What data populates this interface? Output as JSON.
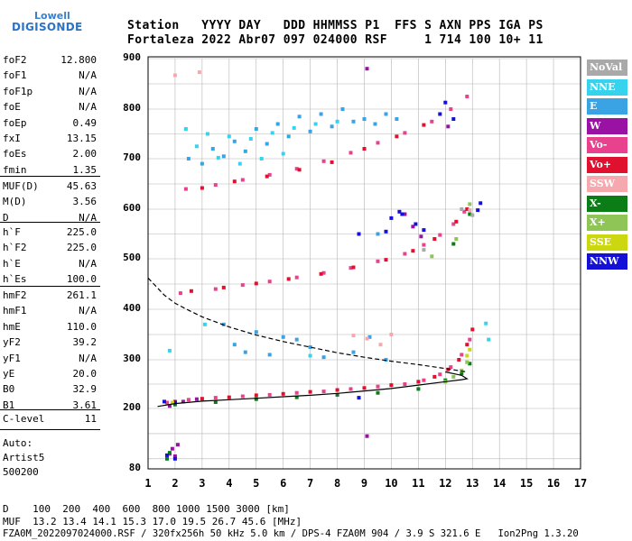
{
  "logo": {
    "line1": "Lowell",
    "line2": "DIGISONDE"
  },
  "header": {
    "row1": "Station   YYYY DAY   DDD HHMMSS P1  FFS S AXN PPS IGA PS",
    "row2": "Fortaleza 2022 Abr07 097 024000 RSF     1 714 100 10+ 11"
  },
  "params": {
    "group1": [
      {
        "label": "foF2",
        "value": "12.800"
      },
      {
        "label": "foF1",
        "value": "N/A"
      },
      {
        "label": "foF1p",
        "value": "N/A"
      },
      {
        "label": "foE",
        "value": "N/A"
      },
      {
        "label": "foEp",
        "value": "0.49"
      },
      {
        "label": "fxI",
        "value": "13.15"
      },
      {
        "label": "foEs",
        "value": "2.00"
      },
      {
        "label": "fmin",
        "value": "1.35"
      }
    ],
    "group2": [
      {
        "label": "MUF(D)",
        "value": "45.63"
      },
      {
        "label": "M(D)",
        "value": "3.56"
      },
      {
        "label": "D",
        "value": "N/A"
      }
    ],
    "group3": [
      {
        "label": "h`F",
        "value": "225.0"
      },
      {
        "label": "h`F2",
        "value": "225.0"
      },
      {
        "label": "h`E",
        "value": "N/A"
      },
      {
        "label": "h`Es",
        "value": "100.0"
      }
    ],
    "group4": [
      {
        "label": "hmF2",
        "value": "261.1"
      },
      {
        "label": "hmF1",
        "value": "N/A"
      },
      {
        "label": "hmE",
        "value": "110.0"
      },
      {
        "label": "yF2",
        "value": "39.2"
      },
      {
        "label": "yF1",
        "value": "N/A"
      },
      {
        "label": "yE",
        "value": "20.0"
      },
      {
        "label": "B0",
        "value": "32.9"
      },
      {
        "label": "B1",
        "value": "3.61"
      }
    ],
    "group5": [
      {
        "label": "C-level",
        "value": "11"
      }
    ]
  },
  "auto": {
    "line1": "Auto:",
    "line2": "Artist5",
    "line3": "500200"
  },
  "legend": [
    {
      "label": "NoVal",
      "color": "#a9a9a9",
      "text_color": "#ffffff"
    },
    {
      "label": "NNE",
      "color": "#35d3ee",
      "text_color": "#ffffff"
    },
    {
      "label": "E",
      "color": "#3aa3e3",
      "text_color": "#ffffff"
    },
    {
      "label": "W",
      "color": "#9a12a3",
      "text_color": "#ffffff"
    },
    {
      "label": "Vo-",
      "color": "#e8418e",
      "text_color": "#ffffff"
    },
    {
      "label": "Vo+",
      "color": "#e0102f",
      "text_color": "#ffffff"
    },
    {
      "label": "SSW",
      "color": "#f5a9ae",
      "text_color": "#ffffff"
    },
    {
      "label": "X-",
      "color": "#0b7d17",
      "text_color": "#ffffff"
    },
    {
      "label": "X+",
      "color": "#8fc456",
      "text_color": "#ffffff"
    },
    {
      "label": "SSE",
      "color": "#cdd70f",
      "text_color": "#ffffff"
    },
    {
      "label": "NNW",
      "color": "#1410d8",
      "text_color": "#ffffff"
    }
  ],
  "footer": {
    "line1": "D    100  200  400  600  800 1000 1500 3000 [km]",
    "line2": "MUF  13.2 13.4 14.1 15.3 17.0 19.5 26.7 45.6 [MHz]",
    "line3": "FZA0M_2022097024000.RSF / 320fx256h 50 kHz 5.0 km / DPS-4 FZA0M 904 / 3.9 S 321.6 E   Ion2Png 1.3.20"
  },
  "chart_data": {
    "type": "scatter",
    "title": "",
    "xlabel": "",
    "ylabel": "",
    "xlim": [
      1,
      17
    ],
    "ylim": [
      80,
      900
    ],
    "x_ticks": [
      "1",
      "2",
      "3",
      "4",
      "5",
      "6",
      "7",
      "8",
      "9",
      "10",
      "11",
      "12",
      "13",
      "14",
      "15",
      "16",
      "17"
    ],
    "y_ticks": [
      "80",
      "200",
      "300",
      "400",
      "500",
      "600",
      "700",
      "800",
      "900"
    ],
    "grid": true,
    "legend_position": "right",
    "series": [
      {
        "name": "Vo-",
        "color": "#e8418e",
        "points": [
          [
            1.7,
            212
          ],
          [
            2.5,
            218
          ],
          [
            3.5,
            222
          ],
          [
            4.5,
            225
          ],
          [
            5.5,
            228
          ],
          [
            6.5,
            232
          ],
          [
            7.5,
            235
          ],
          [
            8.5,
            240
          ],
          [
            9.5,
            245
          ],
          [
            10.5,
            250
          ],
          [
            11.2,
            258
          ],
          [
            11.8,
            270
          ],
          [
            12.2,
            285
          ],
          [
            12.6,
            310
          ],
          [
            12.9,
            340
          ],
          [
            2.2,
            432
          ],
          [
            3.5,
            440
          ],
          [
            4.5,
            448
          ],
          [
            5.5,
            455
          ],
          [
            6.5,
            463
          ],
          [
            7.5,
            472
          ],
          [
            8.5,
            482
          ],
          [
            9.5,
            495
          ],
          [
            10.5,
            510
          ],
          [
            11.2,
            528
          ],
          [
            11.8,
            548
          ],
          [
            12.3,
            570
          ],
          [
            12.7,
            595
          ],
          [
            2.4,
            640
          ],
          [
            3.5,
            648
          ],
          [
            4.5,
            658
          ],
          [
            5.5,
            668
          ],
          [
            6.5,
            680
          ],
          [
            7.5,
            695
          ],
          [
            8.5,
            712
          ],
          [
            9.5,
            732
          ],
          [
            10.5,
            752
          ],
          [
            11.5,
            775
          ],
          [
            12.2,
            800
          ],
          [
            12.8,
            825
          ]
        ]
      },
      {
        "name": "Vo+",
        "color": "#e0102f",
        "points": [
          [
            2.0,
            214
          ],
          [
            3.0,
            220
          ],
          [
            4.0,
            223
          ],
          [
            5.0,
            227
          ],
          [
            6.0,
            230
          ],
          [
            7.0,
            234
          ],
          [
            8.0,
            238
          ],
          [
            9.0,
            242
          ],
          [
            10.0,
            248
          ],
          [
            11.0,
            255
          ],
          [
            11.6,
            265
          ],
          [
            12.1,
            280
          ],
          [
            12.5,
            300
          ],
          [
            12.8,
            330
          ],
          [
            13.0,
            360
          ],
          [
            2.6,
            436
          ],
          [
            3.8,
            443
          ],
          [
            5.0,
            451
          ],
          [
            6.2,
            460
          ],
          [
            7.4,
            470
          ],
          [
            8.6,
            483
          ],
          [
            9.8,
            498
          ],
          [
            10.8,
            516
          ],
          [
            11.6,
            540
          ],
          [
            12.4,
            575
          ],
          [
            12.8,
            600
          ],
          [
            3.0,
            642
          ],
          [
            4.2,
            655
          ],
          [
            5.4,
            665
          ],
          [
            6.6,
            678
          ],
          [
            7.8,
            693
          ],
          [
            9.0,
            720
          ],
          [
            10.2,
            745
          ],
          [
            11.2,
            768
          ]
        ]
      },
      {
        "name": "E",
        "color": "#3aa3e3",
        "points": [
          [
            2.5,
            700
          ],
          [
            3.0,
            690
          ],
          [
            3.4,
            720
          ],
          [
            3.8,
            705
          ],
          [
            4.2,
            735
          ],
          [
            4.6,
            715
          ],
          [
            5.0,
            760
          ],
          [
            5.4,
            730
          ],
          [
            5.8,
            770
          ],
          [
            6.2,
            745
          ],
          [
            6.6,
            785
          ],
          [
            7.0,
            755
          ],
          [
            7.4,
            790
          ],
          [
            7.8,
            765
          ],
          [
            8.2,
            800
          ],
          [
            8.6,
            775
          ],
          [
            9.0,
            780
          ],
          [
            9.4,
            770
          ],
          [
            9.8,
            790
          ],
          [
            10.2,
            780
          ],
          [
            5.5,
            310
          ],
          [
            6.0,
            345
          ],
          [
            6.5,
            340
          ],
          [
            7.0,
            325
          ],
          [
            7.5,
            305
          ],
          [
            4.2,
            330
          ],
          [
            4.6,
            315
          ],
          [
            8.6,
            315
          ],
          [
            9.2,
            345
          ],
          [
            9.8,
            300
          ],
          [
            3.8,
            370
          ],
          [
            5.0,
            355
          ],
          [
            9.5,
            550
          ]
        ]
      },
      {
        "name": "NNE",
        "color": "#35d3ee",
        "points": [
          [
            2.4,
            760
          ],
          [
            3.2,
            750
          ],
          [
            4.0,
            745
          ],
          [
            4.8,
            740
          ],
          [
            5.6,
            752
          ],
          [
            6.4,
            762
          ],
          [
            7.2,
            770
          ],
          [
            8.0,
            775
          ],
          [
            2.8,
            725
          ],
          [
            3.6,
            702
          ],
          [
            4.4,
            690
          ],
          [
            5.2,
            700
          ],
          [
            6.0,
            710
          ],
          [
            1.8,
            318
          ],
          [
            3.1,
            370
          ],
          [
            7.0,
            308
          ],
          [
            13.5,
            372
          ],
          [
            13.6,
            340
          ]
        ]
      },
      {
        "name": "W",
        "color": "#9a12a3",
        "points": [
          [
            1.8,
            110
          ],
          [
            1.9,
            120
          ],
          [
            2.0,
            105
          ],
          [
            2.1,
            128
          ],
          [
            9.1,
            145
          ],
          [
            9.1,
            880
          ],
          [
            10.5,
            590
          ],
          [
            10.8,
            565
          ],
          [
            11.1,
            545
          ],
          [
            12.1,
            765
          ],
          [
            1.8,
            205
          ],
          [
            2.3,
            214
          ],
          [
            2.8,
            219
          ]
        ]
      },
      {
        "name": "X-",
        "color": "#0b7d17",
        "points": [
          [
            1.8,
            112
          ],
          [
            1.7,
            100
          ],
          [
            2.0,
            208
          ],
          [
            3.5,
            213
          ],
          [
            5.0,
            219
          ],
          [
            6.5,
            223
          ],
          [
            8.0,
            228
          ],
          [
            9.5,
            232
          ],
          [
            11.0,
            240
          ],
          [
            12.0,
            258
          ],
          [
            12.6,
            272
          ],
          [
            12.9,
            292
          ],
          [
            12.3,
            530
          ],
          [
            12.9,
            590
          ]
        ]
      },
      {
        "name": "X+",
        "color": "#8fc456",
        "points": [
          [
            12.0,
            255
          ],
          [
            12.3,
            265
          ],
          [
            12.6,
            278
          ],
          [
            12.8,
            295
          ],
          [
            12.4,
            540
          ],
          [
            12.9,
            610
          ],
          [
            11.5,
            505
          ]
        ]
      },
      {
        "name": "NNW",
        "color": "#1410d8",
        "points": [
          [
            1.7,
            107
          ],
          [
            2.0,
            100
          ],
          [
            1.6,
            214
          ],
          [
            2.0,
            212
          ],
          [
            8.8,
            222
          ],
          [
            10.4,
            590
          ],
          [
            10.9,
            570
          ],
          [
            11.2,
            558
          ],
          [
            11.8,
            790
          ],
          [
            12.3,
            780
          ],
          [
            12.0,
            813
          ],
          [
            13.3,
            612
          ],
          [
            8.8,
            550
          ],
          [
            9.8,
            555
          ],
          [
            10.0,
            582
          ],
          [
            10.3,
            595
          ],
          [
            13.2,
            598
          ]
        ]
      },
      {
        "name": "SSW",
        "color": "#f5a9ae",
        "points": [
          [
            8.6,
            348
          ],
          [
            9.1,
            342
          ],
          [
            9.6,
            330
          ],
          [
            10.0,
            350
          ],
          [
            12.9,
            598
          ],
          [
            2.0,
            867
          ],
          [
            2.9,
            873
          ]
        ]
      },
      {
        "name": "SSE",
        "color": "#cdd70f",
        "points": [
          [
            1.9,
            212
          ],
          [
            12.8,
            308
          ],
          [
            12.9,
            320
          ]
        ]
      },
      {
        "name": "NoVal",
        "color": "#a9a9a9",
        "points": [
          [
            13.0,
            588
          ],
          [
            12.6,
            600
          ],
          [
            11.2,
            518
          ]
        ]
      }
    ],
    "profile": {
      "name": "profile",
      "x": [
        1.35,
        2.0,
        3.0,
        4.0,
        5.0,
        6.0,
        7.0,
        8.0,
        9.0,
        10.0,
        11.0,
        12.0,
        12.6,
        12.8,
        12.6,
        12.0
      ],
      "y": [
        204,
        210,
        215,
        218,
        221,
        224,
        227,
        231,
        236,
        241,
        248,
        255,
        259,
        261,
        268,
        275
      ]
    },
    "topside": {
      "name": "topside",
      "x": [
        1.0,
        1.3,
        1.6,
        2.0,
        2.5,
        3.0,
        4.0,
        5.0,
        6.0,
        7.0,
        8.0,
        9.0,
        10.0,
        11.0,
        12.0,
        12.8
      ],
      "y": [
        462,
        445,
        428,
        412,
        398,
        385,
        365,
        349,
        336,
        325,
        314,
        305,
        297,
        290,
        282,
        275
      ]
    }
  }
}
